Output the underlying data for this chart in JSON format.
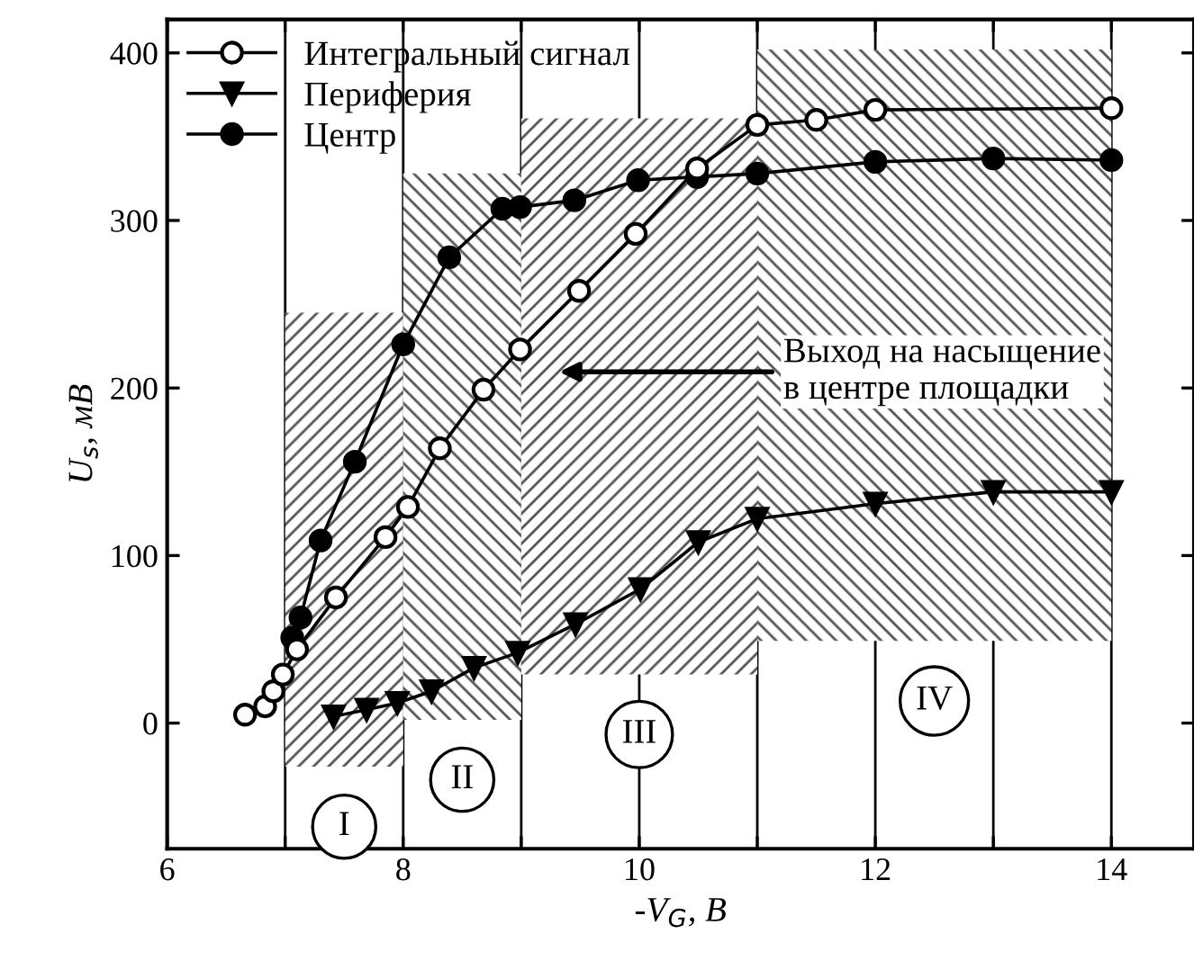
{
  "chart_data": {
    "type": "line",
    "xlabel": "-V$_{G}$, В",
    "ylabel": "U$_{s}$, мВ",
    "xlim": [
      6,
      14.7
    ],
    "ylim": [
      -75,
      420
    ],
    "xticks": [
      6,
      {
        "value": 7,
        "label": null
      },
      8,
      {
        "value": 9,
        "label": null
      },
      10,
      {
        "value": 11,
        "label": null
      },
      12,
      {
        "value": 13,
        "label": null
      },
      14
    ],
    "yticks": [
      0,
      100,
      200,
      300,
      400
    ],
    "grid": "x",
    "legend": "top left",
    "line_style": "solid",
    "series": [
      {
        "type": "histogram",
        "color": "#555555",
        "bins": [
          7,
          8,
          9,
          11,
          14
        ],
        "base": [
          -26,
          2,
          29,
          49
        ],
        "values": [
          271,
          326,
          332,
          353
        ]
      },
      {
        "name": "Интегральный сигнал",
        "color": "#000000",
        "marker": "circle",
        "x": [
          6.66,
          6.83,
          6.9,
          6.98,
          7.1,
          7.43,
          7.85,
          8.04,
          8.31,
          8.68,
          8.99,
          9.49,
          9.97,
          10.49,
          11.0,
          11.5,
          12.0,
          14.0
        ],
        "values": [
          5,
          10,
          19,
          29,
          44,
          75,
          111,
          129,
          164,
          199,
          223,
          258,
          292,
          331,
          357,
          360,
          366,
          367
        ]
      },
      {
        "name": "Периферия",
        "color": "#000000",
        "marker": "triangle",
        "x": [
          7.41,
          7.69,
          7.95,
          8.24,
          8.6,
          8.97,
          9.46,
          10.01,
          10.5,
          11.0,
          12.0,
          13.0,
          14.0
        ],
        "values": [
          4,
          8,
          12,
          19,
          33,
          42,
          59,
          80,
          108,
          122,
          131,
          138,
          138
        ]
      },
      {
        "name": "Центр",
        "color": "#000000",
        "marker": "circle",
        "x": [
          7.06,
          7.13,
          7.3,
          7.59,
          8.0,
          8.39,
          8.84,
          8.99,
          9.45,
          9.99,
          10.49,
          11.0,
          12.0,
          13.0,
          14.0
        ],
        "values": [
          51,
          63,
          109,
          156,
          226,
          278,
          307,
          308,
          312,
          324,
          326,
          328,
          335,
          337,
          336
        ]
      }
    ],
    "annotations": [
      "Выход на насыщение\nв центре площадки",
      {
        "text": "I",
        "x": 7.5,
        "y": -26
      },
      {
        "text": "II",
        "x": 8.5,
        "y": 2
      },
      {
        "text": "III",
        "x": 10,
        "y": 29
      },
      {
        "text": "IV",
        "x": 12.5,
        "y": 49
      }
    ]
  }
}
